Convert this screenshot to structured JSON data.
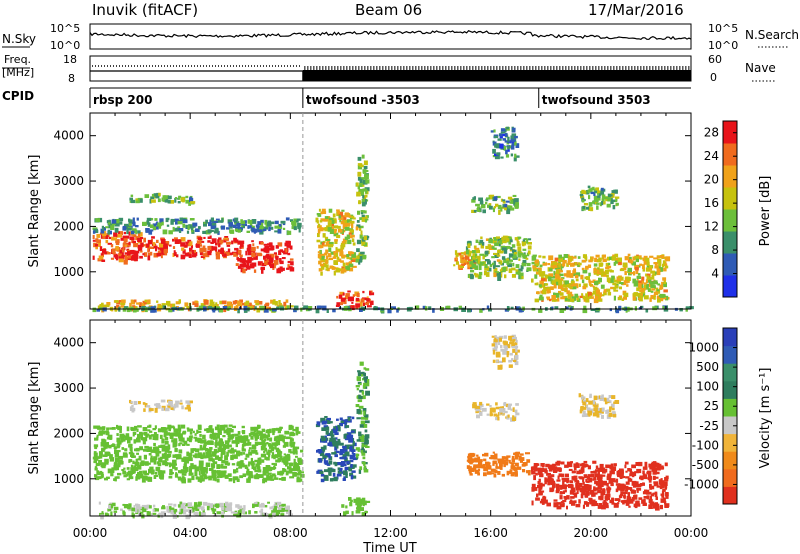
{
  "header": {
    "station": "Inuvik (fitACF)",
    "beam": "Beam 06",
    "date": "17/Mar/2016"
  },
  "strip_labels": {
    "nsky": "N.Sky",
    "nsearch": "N.Search",
    "freq_line1": "Freq.",
    "freq_line2": "[MHz]",
    "nave": "Nave",
    "cpid": "CPID",
    "nsky_ticks": [
      "10^5",
      "10^0"
    ],
    "nsearch_ticks": [
      "10^5",
      "10^0"
    ],
    "freq_ticks": [
      "18",
      "8"
    ],
    "nave_ticks": [
      "60",
      "0"
    ]
  },
  "cpid_segments": [
    {
      "label": "rbsp 200",
      "start_hour": 0.0
    },
    {
      "label": "twofsound -3503",
      "start_hour": 8.5
    },
    {
      "label": "twofsound 3503",
      "start_hour": 17.92
    }
  ],
  "time_axis": {
    "label": "Time UT",
    "ticks": [
      "00:00",
      "04:00",
      "08:00",
      "12:00",
      "16:00",
      "20:00",
      "00:00"
    ],
    "range_hours": [
      0,
      24
    ]
  },
  "range_axis": {
    "label": "Slant Range [km]",
    "ticks": [
      "1000",
      "2000",
      "3000",
      "4000"
    ],
    "range_km": [
      180,
      4500
    ]
  },
  "power_colorbar": {
    "label": "Power [dB]",
    "ticks": [
      "4",
      "8",
      "12",
      "16",
      "20",
      "24",
      "28"
    ],
    "range": [
      0,
      30
    ]
  },
  "velocity_colorbar": {
    "label": "Velocity [m s⁻¹]",
    "ticks": [
      "1000",
      "500",
      "100",
      "25",
      "-25",
      "-100",
      "-500",
      "-1000"
    ]
  },
  "chart_data": {
    "type": "heatmap",
    "title": "Inuvik (fitACF) Beam 06 17/Mar/2016",
    "xlabel": "Time UT",
    "ylabel": "Slant Range [km]",
    "xlim": [
      0,
      24
    ],
    "ylim": [
      180,
      4500
    ],
    "series": [
      {
        "name": "Power [dB]",
        "regions": [
          {
            "t": [
              0.1,
              2.0
            ],
            "r": [
              1250,
              1900
            ],
            "v": 26
          },
          {
            "t": [
              2.0,
              5.8
            ],
            "r": [
              1350,
              1800
            ],
            "v": 27
          },
          {
            "t": [
              5.8,
              8.0
            ],
            "r": [
              1050,
              1700
            ],
            "v": 29
          },
          {
            "t": [
              0.1,
              8.4
            ],
            "r": [
              1900,
              2200
            ],
            "v": 10
          },
          {
            "t": [
              0.3,
              8.0
            ],
            "r": [
              200,
              400
            ],
            "v": 20
          },
          {
            "t": [
              1.5,
              4.0
            ],
            "r": [
              2550,
              2750
            ],
            "v": 12
          },
          {
            "t": [
              9.8,
              11.2
            ],
            "r": [
              250,
              600
            ],
            "v": 26
          },
          {
            "t": [
              9.0,
              10.5
            ],
            "r": [
              1000,
              2400
            ],
            "v": 18
          },
          {
            "t": [
              10.6,
              11.0
            ],
            "r": [
              1200,
              3600
            ],
            "v": 14
          },
          {
            "t": [
              14.5,
              15.5
            ],
            "r": [
              1100,
              1500
            ],
            "v": 20
          },
          {
            "t": [
              15.0,
              17.5
            ],
            "r": [
              900,
              1800
            ],
            "v": 14
          },
          {
            "t": [
              15.2,
              17.0
            ],
            "r": [
              2350,
              2700
            ],
            "v": 12
          },
          {
            "t": [
              16.0,
              17.0
            ],
            "r": [
              3500,
              4200
            ],
            "v": 8
          },
          {
            "t": [
              17.6,
              23.0
            ],
            "r": [
              400,
              1400
            ],
            "v": 18
          },
          {
            "t": [
              19.5,
              21.0
            ],
            "r": [
              2400,
              2900
            ],
            "v": 12
          },
          {
            "t": [
              0.0,
              24.0
            ],
            "r": [
              180,
              260
            ],
            "v": 10
          }
        ]
      },
      {
        "name": "Velocity [m/s]",
        "regions": [
          {
            "t": [
              0.1,
              8.4
            ],
            "r": [
              1000,
              2200
            ],
            "v": 200
          },
          {
            "t": [
              0.3,
              8.0
            ],
            "r": [
              200,
              500
            ],
            "v": 60
          },
          {
            "t": [
              1.5,
              4.0
            ],
            "r": [
              2550,
              2750
            ],
            "v": 0
          },
          {
            "t": [
              9.0,
              10.5
            ],
            "r": [
              1000,
              2400
            ],
            "v": 700
          },
          {
            "t": [
              10.6,
              11.0
            ],
            "r": [
              1200,
              3600
            ],
            "v": 300
          },
          {
            "t": [
              10.0,
              11.0
            ],
            "r": [
              250,
              600
            ],
            "v": 150
          },
          {
            "t": [
              15.0,
              17.5
            ],
            "r": [
              1100,
              1600
            ],
            "v": -150
          },
          {
            "t": [
              15.2,
              17.0
            ],
            "r": [
              2350,
              2700
            ],
            "v": 0
          },
          {
            "t": [
              16.0,
              17.0
            ],
            "r": [
              3500,
              4200
            ],
            "v": 0
          },
          {
            "t": [
              17.6,
              23.0
            ],
            "r": [
              400,
              1400
            ],
            "v": -400
          },
          {
            "t": [
              19.5,
              21.0
            ],
            "r": [
              2400,
              2900
            ],
            "v": 0
          }
        ]
      }
    ]
  }
}
